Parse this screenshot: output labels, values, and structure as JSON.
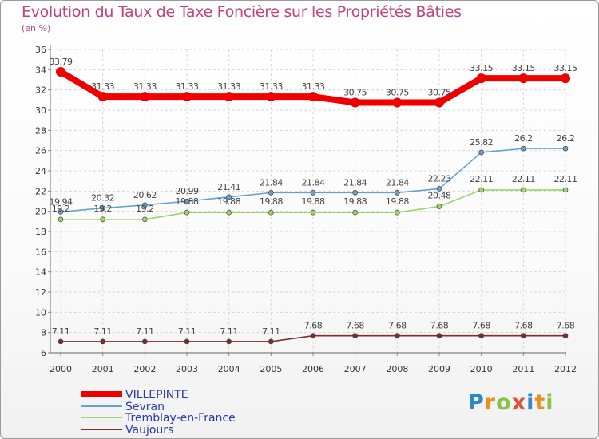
{
  "chart_data": {
    "type": "line",
    "title": "Evolution du Taux de Taxe Foncière sur les Propriétés Bâties",
    "ylabel": "(en %)",
    "xlabel": "",
    "x": [
      "2000",
      "2001",
      "2002",
      "2003",
      "2004",
      "2005",
      "2006",
      "2007",
      "2008",
      "2009",
      "2010",
      "2011",
      "2012"
    ],
    "ylim": [
      6,
      36
    ],
    "yticks": [
      "6",
      "8",
      "10",
      "12",
      "14",
      "16",
      "18",
      "20",
      "22",
      "24",
      "26",
      "28",
      "30",
      "32",
      "34",
      "36"
    ],
    "series": [
      {
        "name": "VILLEPINTE",
        "color": "#ee0000",
        "values": [
          33.79,
          31.33,
          31.33,
          31.33,
          31.33,
          31.33,
          31.33,
          30.75,
          30.75,
          30.75,
          33.15,
          33.15,
          33.15
        ],
        "labels": [
          "33.79",
          "31.33",
          "31.33",
          "31.33",
          "31.33",
          "31.33",
          "31.33",
          "30.75",
          "30.75",
          "30.75",
          "33.15",
          "33.15",
          "33.15"
        ]
      },
      {
        "name": "Sevran",
        "color": "#6aa0cf",
        "values": [
          19.94,
          20.32,
          20.62,
          20.99,
          21.41,
          21.84,
          21.84,
          21.84,
          21.84,
          22.23,
          25.82,
          26.2,
          26.2
        ],
        "labels": [
          "19.94",
          "20.32",
          "20.62",
          "20.99",
          "21.41",
          "21.84",
          "21.84",
          "21.84",
          "21.84",
          "22.23",
          "25.82",
          "26.2",
          "26.2"
        ]
      },
      {
        "name": "Tremblay-en-France",
        "color": "#9bd46a",
        "values": [
          19.2,
          19.2,
          19.2,
          19.88,
          19.88,
          19.88,
          19.88,
          19.88,
          19.88,
          20.48,
          22.11,
          22.11,
          22.11
        ],
        "labels": [
          "19.2",
          "19.2",
          "19.2",
          "19.88",
          "19.88",
          "19.88",
          "19.88",
          "19.88",
          "19.88",
          "20.48",
          "22.11",
          "22.11",
          "22.11"
        ]
      },
      {
        "name": "Vaujours",
        "color": "#7a2e2e",
        "values": [
          7.11,
          7.11,
          7.11,
          7.11,
          7.11,
          7.11,
          7.68,
          7.68,
          7.68,
          7.68,
          7.68,
          7.68,
          7.68
        ],
        "labels": [
          "7.11",
          "7.11",
          "7.11",
          "7.11",
          "7.11",
          "7.11",
          "7.68",
          "7.68",
          "7.68",
          "7.68",
          "7.68",
          "7.68",
          "7.68"
        ]
      }
    ],
    "grid": true
  },
  "logo_text": {
    "p": "P",
    "r": "r",
    "o": "o",
    "x": "x",
    "i": "i",
    "t": "t",
    "i2": "i"
  }
}
